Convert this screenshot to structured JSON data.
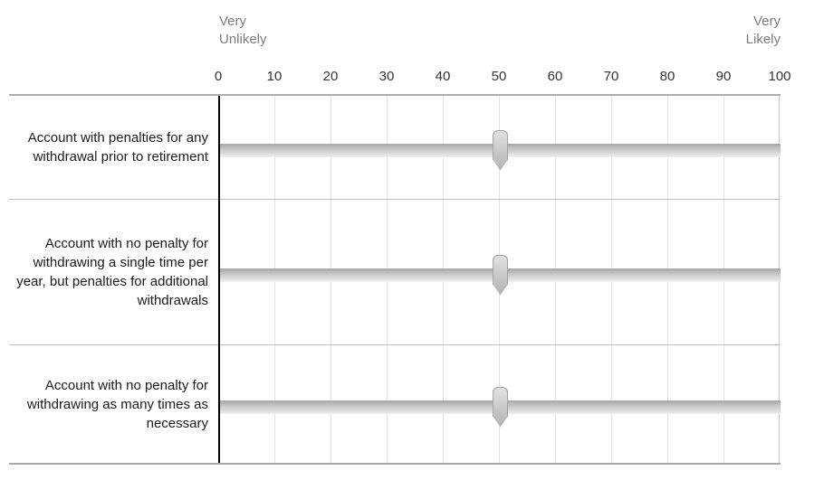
{
  "question": {
    "anchors": {
      "left": "Very\nUnlikely",
      "right": "Very\nLikely"
    },
    "scale": {
      "min": 0,
      "max": 100,
      "step": 10,
      "ticks": [
        "0",
        "10",
        "20",
        "30",
        "40",
        "50",
        "60",
        "70",
        "80",
        "90",
        "100"
      ]
    },
    "rows": [
      {
        "label": "Account with penalties for any withdrawal prior to retirement",
        "value": 50
      },
      {
        "label": "Account with no penalty for withdrawing a single time per year, but penalties for additional withdrawals",
        "value": 50
      },
      {
        "label": "Account with no penalty for withdrawing as many times as necessary",
        "value": 50
      }
    ],
    "colors": {
      "anchor_text": "#7c7c7c",
      "tick_text": "#333333",
      "statement_text": "#1a1a1a",
      "axis_line": "#000000",
      "gridline": "#e4e4e4",
      "row_divider": "#bebebe",
      "track_gradient_top": "#a6a6a6",
      "track_gradient_bottom": "#f2f2f2",
      "handle_gradient_top": "#e2e2e2",
      "handle_gradient_bottom": "#b2b2b2"
    }
  }
}
